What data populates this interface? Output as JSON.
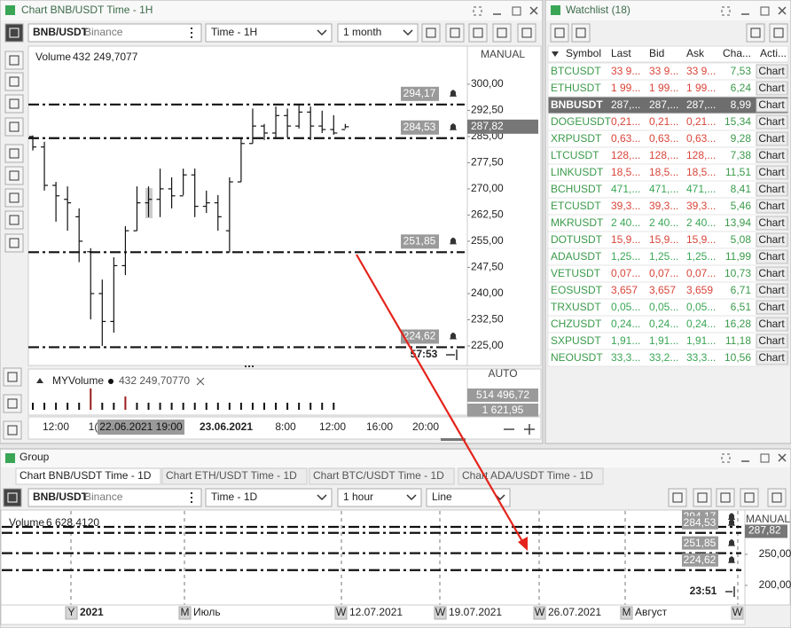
{
  "top_window": {
    "title": "Chart BNB/USDT Time - 1H",
    "symbol": "BNB/USDT",
    "exchange": "Binance",
    "timeframe": "Time - 1H",
    "range": "1 month",
    "volume_label": "Volume",
    "volume_value": "432 249,7077",
    "scale_mode": "MANUAL",
    "current_price": {
      "value": 287.82,
      "label": "287,82"
    },
    "timer": "57:53",
    "chart": {
      "type": "ohlc",
      "ylim": [
        219.4,
        310.9
      ],
      "yticks": [
        {
          "value": 300,
          "label": "300,00"
        },
        {
          "value": 292.5,
          "label": "292,50"
        },
        {
          "value": 285,
          "label": "285,00"
        },
        {
          "value": 277.5,
          "label": "277,50"
        },
        {
          "value": 270,
          "label": "270,00"
        },
        {
          "value": 262.5,
          "label": "262,50"
        },
        {
          "value": 255,
          "label": "255,00"
        },
        {
          "value": 247.5,
          "label": "247,50"
        },
        {
          "value": 240,
          "label": "240,00"
        },
        {
          "value": 232.5,
          "label": "232,50"
        },
        {
          "value": 225,
          "label": "225,00"
        }
      ],
      "alerts": [
        {
          "value": 294.17,
          "label": "294,17"
        },
        {
          "value": 284.53,
          "label": "284,53"
        },
        {
          "value": 251.85,
          "label": "251,85"
        },
        {
          "value": 224.62,
          "label": "224,62"
        }
      ],
      "candles": [
        {
          "o": 285,
          "h": 285.3,
          "l": 281,
          "c": 282
        },
        {
          "o": 282,
          "h": 283.5,
          "l": 269.5,
          "c": 271
        },
        {
          "o": 271,
          "h": 272,
          "l": 260.6,
          "c": 268
        },
        {
          "o": 267,
          "h": 270.7,
          "l": 258,
          "c": 266
        },
        {
          "o": 262,
          "h": 264.4,
          "l": 249,
          "c": 255
        },
        {
          "o": 252,
          "h": 253,
          "l": 232.6,
          "c": 240
        },
        {
          "o": 240,
          "h": 244,
          "l": 225,
          "c": 232
        },
        {
          "o": 232,
          "h": 250.4,
          "l": 228.8,
          "c": 248
        },
        {
          "o": 248,
          "h": 259.3,
          "l": 245.3,
          "c": 258
        },
        {
          "o": 258,
          "h": 270.7,
          "l": 258,
          "c": 266
        },
        {
          "o": 266,
          "h": 270.7,
          "l": 261.9,
          "c": 267
        },
        {
          "o": 267,
          "h": 275.8,
          "l": 261.9,
          "c": 270
        },
        {
          "o": 270,
          "h": 273.3,
          "l": 264.4,
          "c": 268
        },
        {
          "o": 268,
          "h": 275.8,
          "l": 268.2,
          "c": 274
        },
        {
          "o": 274,
          "h": 275.8,
          "l": 261.9,
          "c": 265
        },
        {
          "o": 265,
          "h": 269.5,
          "l": 263.1,
          "c": 266
        },
        {
          "o": 266,
          "h": 268.2,
          "l": 258,
          "c": 262
        },
        {
          "o": 258,
          "h": 273.3,
          "l": 251.7,
          "c": 272
        },
        {
          "o": 272,
          "h": 284.7,
          "l": 272,
          "c": 283
        },
        {
          "o": 283,
          "h": 293,
          "l": 283,
          "c": 288
        },
        {
          "o": 288,
          "h": 288.6,
          "l": 284,
          "c": 286
        },
        {
          "o": 286,
          "h": 293.6,
          "l": 284.7,
          "c": 291
        },
        {
          "o": 291,
          "h": 293,
          "l": 284.7,
          "c": 288
        },
        {
          "o": 288,
          "h": 294.1,
          "l": 287.3,
          "c": 292
        },
        {
          "o": 292,
          "h": 293.6,
          "l": 284,
          "c": 288
        },
        {
          "o": 288,
          "h": 292.4,
          "l": 286,
          "c": 287
        },
        {
          "o": 287,
          "h": 291.1,
          "l": 285.5,
          "c": 286
        },
        {
          "o": 287,
          "h": 288.6,
          "l": 287.3,
          "c": 287.8
        }
      ]
    },
    "volume_pane": {
      "name": "MYVolume",
      "value": "432 249,70770",
      "scale_mode": "AUTO",
      "max_label": "514 496,72",
      "last_label": "1 621,95"
    },
    "time_axis": [
      "12:00",
      "1(",
      "23.06.2021",
      "8:00",
      "12:00",
      "16:00",
      "20:00"
    ],
    "crosshair_time": "22.06.2021 19:00"
  },
  "watchlist": {
    "title": "Watchlist (18)",
    "columns": [
      "Symbol",
      "Last",
      "Bid",
      "Ask",
      "Cha...",
      "Acti..."
    ],
    "selected_row": 2,
    "rows": [
      {
        "symbol": "BTCUSDT",
        "last": "33 9...",
        "bid": "33 9...",
        "ask": "33 9...",
        "change": "7,53",
        "action": "Chart",
        "color": "#d9453a"
      },
      {
        "symbol": "ETHUSDT",
        "last": "1 99...",
        "bid": "1 99...",
        "ask": "1 99...",
        "change": "6,24",
        "action": "Chart",
        "color": "#d9453a"
      },
      {
        "symbol": "BNBUSDT",
        "last": "287,...",
        "bid": "287,...",
        "ask": "287,...",
        "change": "8,99",
        "action": "Chart",
        "color": "#ffffff"
      },
      {
        "symbol": "DOGEUSDT",
        "last": "0,21...",
        "bid": "0,21...",
        "ask": "0,21...",
        "change": "15,34",
        "action": "Chart",
        "color": "#d9453a"
      },
      {
        "symbol": "XRPUSDT",
        "last": "0,63...",
        "bid": "0,63...",
        "ask": "0,63...",
        "change": "9,28",
        "action": "Chart",
        "color": "#d9453a"
      },
      {
        "symbol": "LTCUSDT",
        "last": "128,...",
        "bid": "128,...",
        "ask": "128,...",
        "change": "7,38",
        "action": "Chart",
        "color": "#d9453a"
      },
      {
        "symbol": "LINKUSDT",
        "last": "18,5...",
        "bid": "18,5...",
        "ask": "18,5...",
        "change": "11,51",
        "action": "Chart",
        "color": "#d9453a"
      },
      {
        "symbol": "BCHUSDT",
        "last": "471,...",
        "bid": "471,...",
        "ask": "471,...",
        "change": "8,41",
        "action": "Chart",
        "color": "#3aa655"
      },
      {
        "symbol": "ETCUSDT",
        "last": "39,3...",
        "bid": "39,3...",
        "ask": "39,3...",
        "change": "5,46",
        "action": "Chart",
        "color": "#d9453a"
      },
      {
        "symbol": "MKRUSDT",
        "last": "2 40...",
        "bid": "2 40...",
        "ask": "2 40...",
        "change": "13,94",
        "action": "Chart",
        "color": "#3aa655"
      },
      {
        "symbol": "DOTUSDT",
        "last": "15,9...",
        "bid": "15,9...",
        "ask": "15,9...",
        "change": "5,08",
        "action": "Chart",
        "color": "#d9453a"
      },
      {
        "symbol": "ADAUSDT",
        "last": "1,25...",
        "bid": "1,25...",
        "ask": "1,25...",
        "change": "11,99",
        "action": "Chart",
        "color": "#3aa655"
      },
      {
        "symbol": "VETUSDT",
        "last": "0,07...",
        "bid": "0,07...",
        "ask": "0,07...",
        "change": "10,73",
        "action": "Chart",
        "color": "#d9453a"
      },
      {
        "symbol": "EOSUSDT",
        "last": "3,657",
        "bid": "3,657",
        "ask": "3,659",
        "change": "6,71",
        "action": "Chart",
        "color": "#d9453a"
      },
      {
        "symbol": "TRXUSDT",
        "last": "0,05...",
        "bid": "0,05...",
        "ask": "0,05...",
        "change": "6,51",
        "action": "Chart",
        "color": "#3aa655"
      },
      {
        "symbol": "CHZUSDT",
        "last": "0,24...",
        "bid": "0,24...",
        "ask": "0,24...",
        "change": "16,28",
        "action": "Chart",
        "color": "#3aa655"
      },
      {
        "symbol": "SXPUSDT",
        "last": "1,91...",
        "bid": "1,91...",
        "ask": "1,91...",
        "change": "11,18",
        "action": "Chart",
        "color": "#3aa655"
      },
      {
        "symbol": "NEOUSDT",
        "last": "33,3...",
        "bid": "33,2...",
        "ask": "33,3...",
        "change": "10,56",
        "action": "Chart",
        "color": "#3aa655"
      }
    ]
  },
  "group_window": {
    "title": "Group",
    "tabs": [
      "Chart BNB/USDT Time - 1D",
      "Chart ETH/USDT Time - 1D",
      "Chart BTC/USDT Time - 1D",
      "Chart ADA/USDT Time - 1D"
    ],
    "symbol": "BNB/USDT",
    "exchange": "Binance",
    "timeframe": "Time - 1D",
    "range": "1 hour",
    "chart_style": "Line",
    "volume_label": "Volume",
    "volume_value": "6 628,4120",
    "scale_mode": "MANUAL",
    "current_price": {
      "value": 287.82,
      "label": "287,82"
    },
    "timer": "23:51",
    "chart": {
      "type": "lines",
      "ylim": [
        171.4,
        317
      ],
      "yticks": [
        {
          "value": 250,
          "label": "250,00"
        },
        {
          "value": 200,
          "label": "200,00"
        }
      ],
      "alerts": [
        {
          "value": 294.17,
          "label": "294,17"
        },
        {
          "value": 284.53,
          "label": "284,53"
        },
        {
          "value": 251.85,
          "label": "251,85"
        },
        {
          "value": 224.62,
          "label": "224,62"
        }
      ]
    },
    "time_axis": [
      {
        "marker": "Y",
        "label": "2021"
      },
      {
        "marker": "M",
        "label": "Июль"
      },
      {
        "marker": "W",
        "label": "12.07.2021"
      },
      {
        "marker": "W",
        "label": "19.07.2021"
      },
      {
        "marker": "W",
        "label": "26.07.2021"
      },
      {
        "marker": "M",
        "label": "Август"
      },
      {
        "marker": "W"
      }
    ]
  }
}
